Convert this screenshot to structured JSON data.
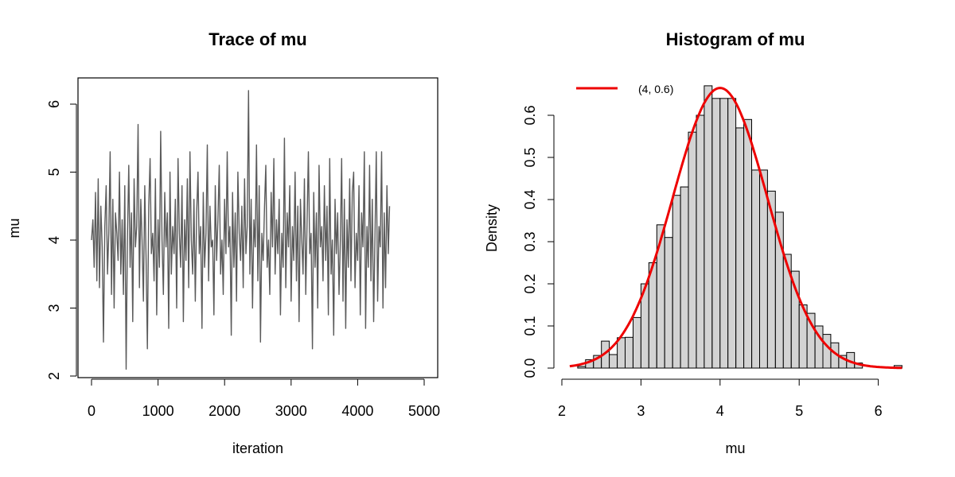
{
  "chart_data": [
    {
      "type": "line",
      "title": "Trace of mu",
      "xlabel": "iteration",
      "ylabel": "mu",
      "xlim": [
        0,
        5000
      ],
      "ylim": [
        2,
        6.2
      ],
      "xticks": [
        "0",
        "1000",
        "2000",
        "3000",
        "4000",
        "5000"
      ],
      "yticks": [
        "2",
        "3",
        "4",
        "5",
        "6"
      ],
      "color": "#5a5a5a",
      "series": [
        {
          "x_start": 0,
          "x_step": 20,
          "values": [
            4.0,
            4.3,
            3.6,
            4.7,
            3.4,
            4.9,
            3.3,
            4.5,
            3.9,
            2.5,
            4.2,
            4.8,
            3.5,
            4.1,
            5.3,
            3.2,
            4.6,
            3.0,
            4.4,
            4.1,
            3.7,
            5.0,
            3.5,
            4.3,
            3.2,
            4.8,
            2.1,
            4.0,
            5.1,
            3.6,
            4.4,
            2.8,
            4.9,
            3.9,
            4.2,
            5.7,
            3.3,
            4.6,
            4.0,
            3.1,
            4.8,
            3.7,
            2.4,
            4.5,
            5.2,
            3.8,
            4.1,
            3.4,
            4.9,
            2.9,
            4.3,
            3.6,
            5.6,
            4.0,
            3.2,
            4.7,
            3.9,
            4.4,
            2.7,
            5.0,
            3.5,
            4.2,
            3.8,
            4.6,
            3.0,
            5.2,
            4.1,
            3.6,
            4.8,
            2.8,
            4.3,
            3.7,
            4.9,
            3.3,
            5.3,
            4.0,
            3.5,
            4.6,
            3.1,
            4.4,
            5.0,
            3.8,
            4.2,
            2.7,
            4.7,
            3.6,
            4.1,
            5.4,
            3.4,
            4.5,
            3.9,
            4.0,
            2.9,
            4.8,
            3.7,
            4.3,
            5.1,
            3.5,
            4.0,
            3.2,
            4.6,
            3.8,
            5.3,
            3.9,
            4.2,
            2.6,
            4.7,
            3.6,
            4.4,
            3.1,
            5.0,
            4.1,
            3.7,
            4.5,
            3.3,
            4.9,
            3.8,
            4.2,
            6.2,
            3.5,
            4.6,
            3.0,
            4.3,
            3.9,
            5.4,
            3.4,
            4.8,
            2.5,
            4.1,
            3.7,
            4.5,
            5.1,
            3.6,
            4.0,
            3.2,
            4.7,
            3.9,
            5.2,
            3.5,
            4.3,
            3.8,
            4.6,
            2.9,
            4.1,
            3.6,
            5.5,
            3.3,
            4.4,
            3.9,
            4.8,
            3.1,
            4.2,
            3.7,
            5.0,
            3.4,
            4.5,
            2.8,
            4.6,
            4.0,
            3.5,
            4.9,
            3.2,
            4.3,
            5.3,
            3.8,
            4.1,
            2.4,
            4.7,
            3.6,
            4.4,
            3.0,
            5.1,
            3.9,
            4.2,
            3.4,
            4.8,
            3.7,
            4.5,
            2.9,
            5.2,
            3.5,
            4.0,
            2.6,
            4.6,
            3.8,
            4.4,
            3.2,
            4.0,
            5.2,
            3.1,
            4.6,
            2.7,
            4.3,
            3.6,
            4.9,
            3.4,
            4.7,
            5.0,
            3.3,
            4.1,
            3.7,
            4.8,
            2.9,
            4.4,
            3.9,
            5.3,
            2.7,
            4.2,
            3.6,
            5.1,
            3.4,
            4.6,
            2.8,
            4.0,
            5.3,
            3.1,
            4.2,
            3.9,
            5.3,
            3.0,
            4.4,
            3.3,
            4.8,
            3.8,
            4.5
          ]
        }
      ]
    },
    {
      "type": "bar",
      "title": "Histogram of mu",
      "xlabel": "mu",
      "ylabel": "Density",
      "xlim": [
        2,
        6.3
      ],
      "ylim": [
        0,
        0.66
      ],
      "xticks": [
        "2",
        "3",
        "4",
        "5",
        "6"
      ],
      "yticks": [
        "0.0",
        "0.1",
        "0.2",
        "0.3",
        "0.4",
        "0.5",
        "0.6"
      ],
      "bin_width": 0.1,
      "bin_starts": [
        2.2,
        2.3,
        2.4,
        2.5,
        2.6,
        2.7,
        2.8,
        2.9,
        3.0,
        3.1,
        3.2,
        3.3,
        3.4,
        3.5,
        3.6,
        3.7,
        3.8,
        3.9,
        4.0,
        4.1,
        4.2,
        4.3,
        4.4,
        4.5,
        4.6,
        4.7,
        4.8,
        4.9,
        5.0,
        5.1,
        5.2,
        5.3,
        5.4,
        5.5,
        5.6,
        5.7,
        6.2
      ],
      "values": [
        0.004,
        0.02,
        0.03,
        0.064,
        0.032,
        0.072,
        0.073,
        0.12,
        0.2,
        0.25,
        0.34,
        0.31,
        0.41,
        0.43,
        0.56,
        0.6,
        0.67,
        0.64,
        0.64,
        0.64,
        0.57,
        0.59,
        0.47,
        0.47,
        0.42,
        0.37,
        0.27,
        0.23,
        0.15,
        0.13,
        0.1,
        0.08,
        0.06,
        0.03,
        0.037,
        0.012,
        0.006
      ],
      "bar_color": "#d3d3d3",
      "legend": {
        "label": "(4, 0.6)",
        "color": "#ee0000",
        "placement": "top-left"
      },
      "overlay": {
        "type": "normal-density",
        "mean": 4,
        "sd": 0.6,
        "color": "#ee0000"
      }
    }
  ]
}
